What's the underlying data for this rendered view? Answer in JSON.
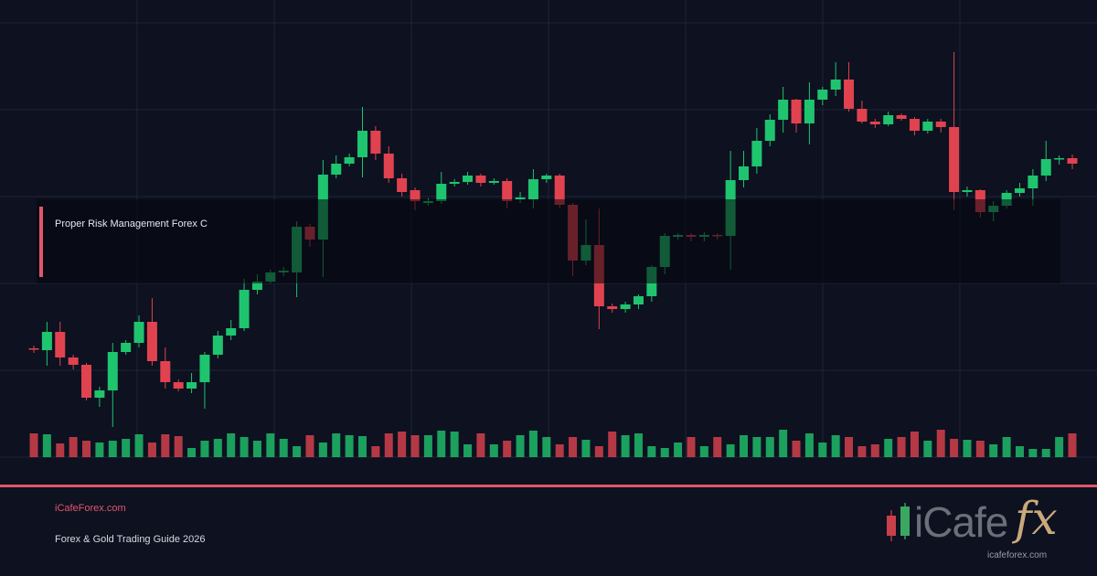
{
  "chart_data": {
    "type": "candlestick",
    "open": [
      119,
      117,
      137,
      109,
      101,
      65,
      73,
      115,
      125,
      148,
      105,
      82,
      75,
      82,
      112,
      133,
      141,
      183,
      192,
      202,
      202,
      252,
      238,
      309,
      321,
      328,
      357,
      332,
      305,
      292,
      278,
      280,
      299,
      301,
      308,
      300,
      302,
      282,
      282,
      304,
      308,
      276,
      215,
      232,
      165,
      162,
      167,
      176,
      208,
      241,
      243,
      241,
      243,
      242,
      303,
      318,
      346,
      369,
      391,
      365,
      391,
      402,
      413,
      381,
      367,
      364,
      374,
      370,
      357,
      367,
      361,
      290,
      292,
      268,
      275,
      289,
      294,
      308,
      326,
      327
    ],
    "high": [
      122,
      148,
      148,
      112,
      103,
      77,
      125,
      128,
      155,
      174,
      120,
      85,
      92,
      115,
      138,
      150,
      195,
      200,
      205,
      208,
      258,
      255,
      325,
      330,
      332,
      383,
      362,
      340,
      310,
      295,
      283,
      312,
      304,
      312,
      310,
      305,
      305,
      290,
      315,
      310,
      310,
      278,
      260,
      272,
      168,
      170,
      178,
      210,
      245,
      245,
      245,
      246,
      245,
      335,
      335,
      360,
      375,
      405,
      392,
      410,
      405,
      432,
      432,
      390,
      370,
      378,
      376,
      372,
      370,
      370,
      443,
      296,
      293,
      280,
      292,
      300,
      315,
      346,
      330,
      331
    ],
    "low": [
      114,
      100,
      100,
      96,
      62,
      55,
      33,
      112,
      120,
      100,
      75,
      72,
      70,
      53,
      108,
      128,
      138,
      178,
      190,
      198,
      175,
      230,
      197,
      305,
      318,
      306,
      325,
      300,
      285,
      270,
      275,
      277,
      296,
      298,
      296,
      298,
      272,
      278,
      272,
      300,
      272,
      198,
      210,
      140,
      158,
      158,
      162,
      170,
      200,
      238,
      236,
      236,
      238,
      205,
      295,
      310,
      340,
      355,
      355,
      342,
      385,
      395,
      378,
      365,
      360,
      362,
      368,
      352,
      354,
      355,
      270,
      285,
      262,
      258,
      272,
      285,
      275,
      302,
      320,
      315
    ],
    "close": [
      118,
      137,
      109,
      101,
      65,
      73,
      115,
      125,
      148,
      105,
      82,
      75,
      82,
      112,
      133,
      141,
      183,
      192,
      202,
      204,
      252,
      238,
      309,
      321,
      328,
      357,
      332,
      305,
      290,
      280,
      280,
      299,
      301,
      308,
      300,
      302,
      280,
      284,
      304,
      308,
      276,
      215,
      232,
      165,
      162,
      167,
      176,
      208,
      242,
      243,
      241,
      243,
      242,
      303,
      318,
      346,
      369,
      391,
      365,
      391,
      402,
      413,
      381,
      367,
      364,
      374,
      370,
      357,
      367,
      361,
      290,
      292,
      268,
      275,
      289,
      294,
      308,
      326,
      327,
      321
    ],
    "volume": [
      26,
      25,
      15,
      22,
      18,
      16,
      18,
      20,
      25,
      16,
      25,
      23,
      10,
      18,
      20,
      26,
      22,
      18,
      26,
      20,
      12,
      24,
      16,
      26,
      24,
      23,
      12,
      26,
      28,
      24,
      24,
      29,
      28,
      14,
      26,
      14,
      18,
      24,
      29,
      22,
      14,
      22,
      19,
      12,
      28,
      24,
      26,
      12,
      10,
      16,
      22,
      12,
      22,
      14,
      24,
      22,
      22,
      30,
      18,
      26,
      16,
      24,
      22,
      12,
      14,
      20,
      22,
      28,
      18,
      30,
      20,
      19,
      18,
      14,
      22,
      12,
      9,
      9,
      22,
      26
    ],
    "ylim": [
      0,
      500
    ],
    "y2lim": [
      0,
      40
    ],
    "up_color": "#1fc46e",
    "down_color": "#e0434f"
  },
  "banner": {
    "headline": "Proper Risk Management Forex C",
    "site": "iCafeForex.com",
    "tagline": "Forex & Gold Trading Guide 2026",
    "logo_text": "iCafe",
    "logo_fx": "fx",
    "logo_url": "icafeforex.com"
  }
}
